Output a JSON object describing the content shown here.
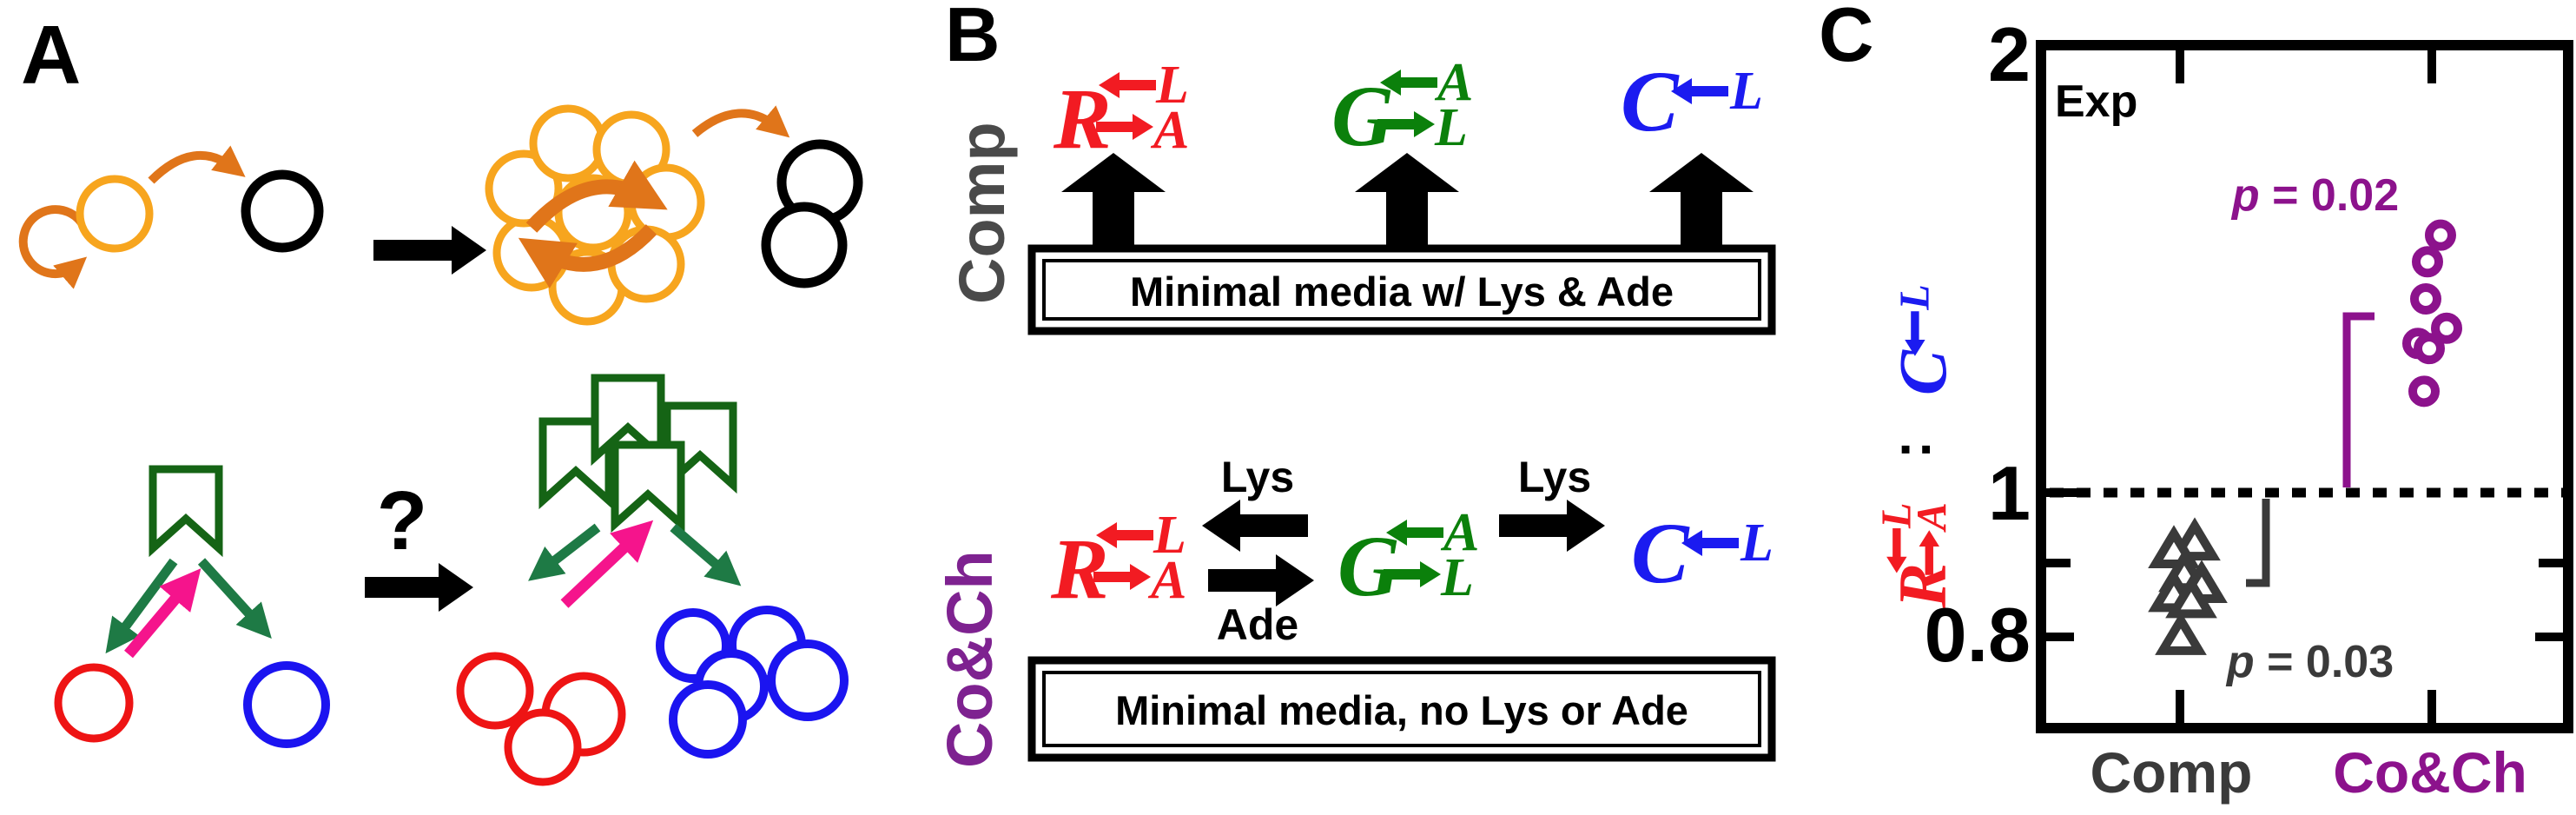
{
  "figure_labels": {
    "a": "A",
    "b": "B",
    "c": "C"
  },
  "colors": {
    "orange_circle": "#F7A51E",
    "orange_arrow": "#E0751A",
    "black": "#000000",
    "banner_green": "#156415",
    "arrow_green": "#1E7A45",
    "pink": "#F5148C",
    "red_circle": "#EE1414",
    "blue_circle": "#1B14F0",
    "gray_label": "#4A4A4A",
    "purple_label": "#7E2290",
    "plot_purple": "#8C128C",
    "plot_gray": "#3A3A3A"
  },
  "fluxes": {
    "R": {
      "letter": "R",
      "consumes": "L",
      "releases": "A",
      "color": "#F21B22"
    },
    "G": {
      "letter": "G",
      "consumes": "A",
      "releases": "L",
      "color": "#0B800B"
    },
    "C": {
      "letter": "C",
      "consumes": "L",
      "color": "#1B1BF0"
    }
  },
  "panelA": {
    "question_mark": "?"
  },
  "panelB": {
    "rows": [
      {
        "label": "Comp",
        "label_color": "#4A4A4A",
        "media": "Minimal media w/ Lys & Ade"
      },
      {
        "label": "Co&Ch",
        "label_color": "#7E2290",
        "media": "Minimal media, no Lys or Ade"
      }
    ],
    "exchange_labels": {
      "lys_to_R": "Lys",
      "ade_to_G": "Ade",
      "lys_to_C": "Lys"
    }
  },
  "chart_data": {
    "type": "scatter",
    "inset_label": "Exp",
    "ylabel_colon": ":",
    "ylabel_semantic": "growth ratio R(consumes L, releases A) : C(consumes L)",
    "yscale": "log",
    "ylim": [
      0.7,
      2
    ],
    "yticks": [
      {
        "label": "2",
        "value": 2
      },
      {
        "label": "1",
        "value": 1
      },
      {
        "label": "0.8",
        "value": 0.8
      }
    ],
    "minor_yticks": [
      0.9
    ],
    "reference_line": 1,
    "x_categories": [
      "Comp",
      "Co&Ch"
    ],
    "x_category_colors": [
      "#3A3A3A",
      "#8C128C"
    ],
    "series": [
      {
        "name": "Comp",
        "marker": "triangle",
        "color": "#3A3A3A",
        "points": [
          {
            "v": 0.926,
            "dx": 17
          },
          {
            "v": 0.915,
            "dx": -7
          },
          {
            "v": 0.882,
            "dx": 5
          },
          {
            "v": 0.867,
            "dx": 25
          },
          {
            "v": 0.855,
            "dx": -7
          },
          {
            "v": 0.847,
            "dx": 13
          },
          {
            "v": 0.8,
            "dx": 1
          }
        ]
      },
      {
        "name": "Co&Ch",
        "marker": "circle",
        "color": "#8C128C",
        "points": [
          {
            "v": 1.49,
            "dx": 10
          },
          {
            "v": 1.43,
            "dx": -5
          },
          {
            "v": 1.35,
            "dx": -7
          },
          {
            "v": 1.29,
            "dx": 17
          },
          {
            "v": 1.26,
            "dx": -16
          },
          {
            "v": 1.25,
            "dx": -3
          },
          {
            "v": 1.17,
            "dx": -9
          }
        ]
      }
    ],
    "annotations": [
      {
        "symbol": "p",
        "text": " = 0.02",
        "color": "#8C128C"
      },
      {
        "symbol": "p",
        "text": " = 0.03",
        "color": "#3A3A3A"
      }
    ]
  }
}
